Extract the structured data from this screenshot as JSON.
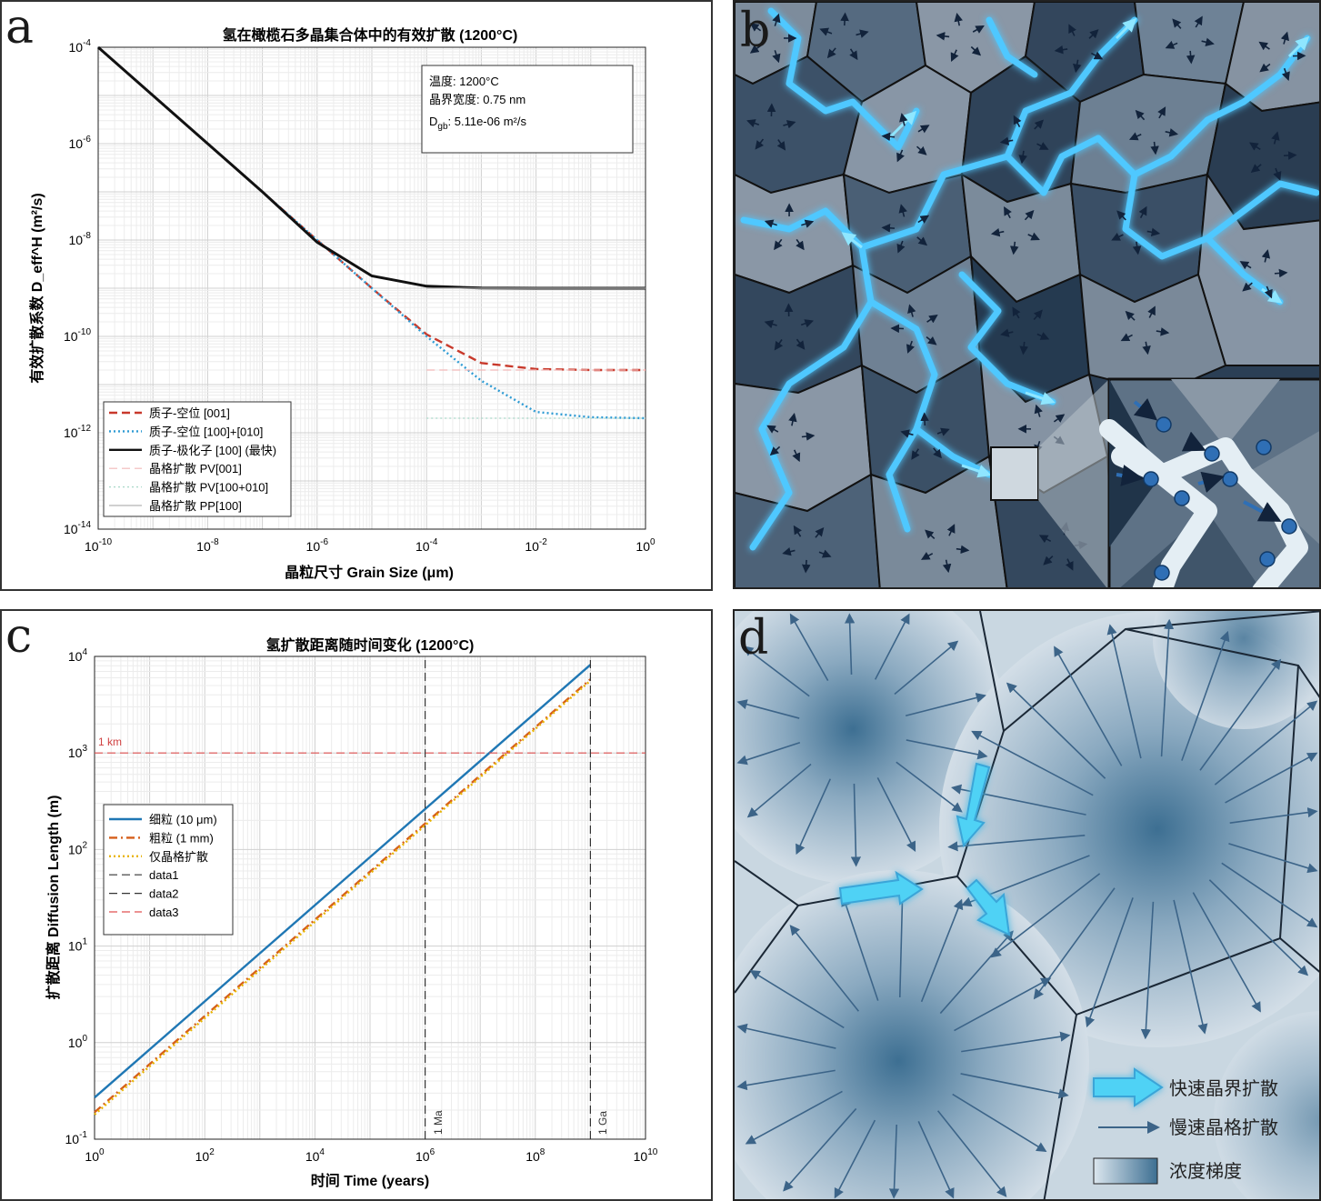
{
  "panels": {
    "a": {
      "label": "a"
    },
    "b": {
      "label": "b"
    },
    "c": {
      "label": "c"
    },
    "d": {
      "label": "d",
      "legend": {
        "fast": "快速晶界扩散",
        "slow": "慢速晶格扩散",
        "gradient": "浓度梯度"
      }
    }
  },
  "chart_data": [
    {
      "id": "a",
      "type": "line",
      "title": "氢在橄榄石多晶集合体中的有效扩散 (1200°C)",
      "xlabel": "晶粒尺寸 Grain Size (μm)",
      "ylabel": "有效扩散系数 D_eff^H (m²/s)",
      "xscale": "log",
      "yscale": "log",
      "xlim": [
        1e-10,
        1
      ],
      "ylim": [
        1e-14,
        0.0001
      ],
      "x_ticks": [
        "10^-10",
        "10^-8",
        "10^-6",
        "10^-4",
        "10^-2",
        "10^0"
      ],
      "y_ticks": [
        "10^-14",
        "10^-12",
        "10^-10",
        "10^-8",
        "10^-6",
        "10^-4"
      ],
      "grid": true,
      "info_box": {
        "temp": "温度: 1200°C",
        "width": "晶界宽度: 0.75 nm",
        "dgb": ": 5.11e-06 m²/s",
        "dgb_symbol": "D",
        "dgb_sub": "gb"
      },
      "legend_position": "lower-left",
      "series": [
        {
          "name": "质子-空位 [001]",
          "color": "#c8392b",
          "style": "dashed",
          "x": [
            1e-10,
            1e-08,
            1e-06,
            1e-05,
            0.0001,
            0.001,
            0.01,
            0.1,
            1
          ],
          "y": [
            0.0001,
            1e-06,
            1e-08,
            1e-09,
            1.1e-10,
            2.8e-11,
            2.1e-11,
            2e-11,
            2e-11
          ]
        },
        {
          "name": "质子-空位 [100]+[010]",
          "color": "#2e9bd4",
          "style": "dotted",
          "x": [
            1e-10,
            1e-08,
            1e-06,
            1e-05,
            0.0001,
            0.001,
            0.01,
            0.1,
            1
          ],
          "y": [
            0.0001,
            1e-06,
            1e-08,
            1e-09,
            1e-10,
            1.2e-11,
            2.7e-12,
            2.1e-12,
            2e-12
          ]
        },
        {
          "name": "质子-极化子 [100] (最快)",
          "color": "#111111",
          "style": "solid",
          "x": [
            1e-10,
            1e-08,
            1e-07,
            1e-06,
            1e-05,
            0.0001,
            0.001,
            0.01,
            0.1,
            1
          ],
          "y": [
            0.0001,
            1e-06,
            1e-07,
            9e-09,
            1.8e-09,
            1.1e-09,
            1.01e-09,
            1e-09,
            1e-09,
            1e-09
          ]
        },
        {
          "name": "晶格扩散 PV[001]",
          "color": "#f2b8b8",
          "style": "dashed",
          "x": [
            0.0001,
            1
          ],
          "y": [
            2e-11,
            2e-11
          ]
        },
        {
          "name": "晶格扩散 PV[100+010]",
          "color": "#a8d8c8",
          "style": "dotted",
          "x": [
            0.0001,
            1
          ],
          "y": [
            2e-12,
            2e-12
          ]
        },
        {
          "name": "晶格扩散 PP[100]",
          "color": "#b5b5b5",
          "style": "solid",
          "x": [
            0.0001,
            1
          ],
          "y": [
            1e-09,
            1e-09
          ]
        }
      ]
    },
    {
      "id": "c",
      "type": "line",
      "title": "氢扩散距离随时间变化 (1200°C)",
      "xlabel": "时间 Time (years)",
      "ylabel": "扩散距离 Diffusion Length (m)",
      "xscale": "log",
      "yscale": "log",
      "xlim": [
        1,
        10000000000.0
      ],
      "ylim": [
        0.1,
        10000.0
      ],
      "x_ticks": [
        "10^0",
        "10^2",
        "10^4",
        "10^6",
        "10^8",
        "10^10"
      ],
      "y_ticks": [
        "10^-1",
        "10^0",
        "10^1",
        "10^2",
        "10^3",
        "10^4"
      ],
      "grid": true,
      "legend_position": "center-left",
      "annotations": {
        "km": "1 km",
        "ma": "1 Ma",
        "ga": "1 Ga"
      },
      "series": [
        {
          "name": "细粒 (10 μm)",
          "color": "#1f77b4",
          "style": "solid",
          "x": [
            1,
            1000000000.0
          ],
          "y": [
            0.27,
            8200
          ]
        },
        {
          "name": "粗粒 (1 mm)",
          "color": "#d55e1a",
          "style": "dashdot",
          "x": [
            1,
            1000000000.0
          ],
          "y": [
            0.19,
            5800
          ]
        },
        {
          "name": "仅晶格扩散",
          "color": "#e8b400",
          "style": "dotted",
          "x": [
            1,
            1000000000.0
          ],
          "y": [
            0.18,
            5600
          ]
        },
        {
          "name": "data1",
          "color": "#333333",
          "style": "dashed",
          "x": [
            1000000.0,
            1000000.0
          ],
          "y": [
            0.1,
            10000.0
          ]
        },
        {
          "name": "data2",
          "color": "#333333",
          "style": "dashed",
          "x": [
            1000000000.0,
            1000000000.0
          ],
          "y": [
            0.1,
            10000.0
          ]
        },
        {
          "name": "data3",
          "color": "#e05050",
          "style": "dashed",
          "x": [
            1,
            10000000000.0
          ],
          "y": [
            1000,
            1000
          ]
        }
      ]
    }
  ]
}
